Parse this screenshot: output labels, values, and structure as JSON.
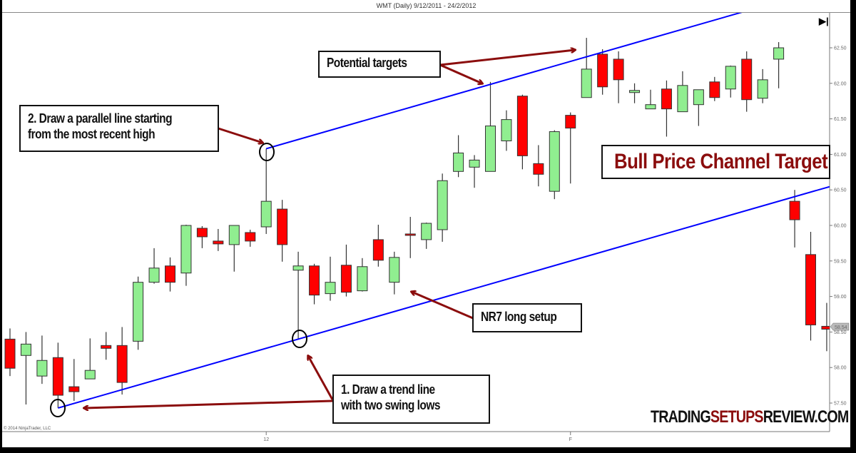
{
  "header": {
    "title": "WMT (Daily)  9/12/2011 - 24/2/2012"
  },
  "copyright": "© 2014 NinjaTrader, LLC",
  "end_button_icon": "skip-to-end-icon",
  "brand": {
    "part1": "TRADING",
    "part2": "SETUPS",
    "part3": "REVIEW.COM"
  },
  "annotations": {
    "potential_targets": "Potential targets",
    "parallel_line_1": "2. Draw a parallel line starting",
    "parallel_line_2": "from the most recent high",
    "bull_channel": "Bull Price Channel Target",
    "nr7": "NR7 long setup",
    "trendline_1": "1. Draw a trend line",
    "trendline_2": "with two swing lows"
  },
  "colors": {
    "up": "#90ee90",
    "down": "#ff0000",
    "trendline": "#0000ff",
    "annotation": "#8b0d0d"
  },
  "chart_data": {
    "type": "candlestick",
    "title": "WMT (Daily)  9/12/2011 - 24/2/2012",
    "ylim": [
      57.3,
      62.85
    ],
    "y_ticks": [
      "57.50",
      "58.00",
      "58.50",
      "59.00",
      "59.50",
      "60.00",
      "60.50",
      "61.00",
      "61.50",
      "62.00",
      "62.50"
    ],
    "x_ticks": [
      {
        "index": 16,
        "label": "12"
      },
      {
        "index": 35,
        "label": "F"
      }
    ],
    "last_price_label": "58.54",
    "grid": false,
    "candles_ohlc": [
      [
        58.4,
        58.55,
        57.88,
        57.99
      ],
      [
        58.17,
        58.5,
        57.48,
        58.33
      ],
      [
        57.88,
        58.45,
        57.77,
        58.1
      ],
      [
        58.14,
        58.35,
        57.43,
        57.61
      ],
      [
        57.73,
        58.12,
        57.53,
        57.66
      ],
      [
        57.84,
        58.41,
        57.84,
        57.96
      ],
      [
        58.31,
        58.5,
        58.11,
        58.27
      ],
      [
        58.31,
        58.57,
        57.62,
        57.79
      ],
      [
        58.37,
        59.28,
        58.25,
        59.2
      ],
      [
        59.2,
        59.68,
        59.18,
        59.4
      ],
      [
        59.43,
        59.55,
        59.07,
        59.2
      ],
      [
        59.33,
        60.01,
        59.15,
        60.0
      ],
      [
        59.96,
        59.99,
        59.68,
        59.84
      ],
      [
        59.78,
        59.95,
        59.64,
        59.74
      ],
      [
        59.73,
        60.0,
        59.35,
        60.0
      ],
      [
        59.9,
        59.94,
        59.7,
        59.78
      ],
      [
        59.98,
        61.08,
        59.88,
        60.34
      ],
      [
        60.23,
        60.36,
        59.49,
        59.73
      ],
      [
        59.37,
        59.63,
        58.4,
        59.43
      ],
      [
        59.43,
        59.46,
        58.89,
        59.02
      ],
      [
        59.04,
        59.56,
        58.94,
        59.2
      ],
      [
        59.44,
        59.73,
        59.0,
        59.06
      ],
      [
        59.08,
        59.54,
        59.07,
        59.42
      ],
      [
        59.8,
        60.01,
        59.42,
        59.51
      ],
      [
        59.2,
        59.63,
        59.03,
        59.55
      ],
      [
        59.88,
        60.12,
        59.54,
        59.86
      ],
      [
        59.8,
        60.04,
        59.67,
        60.03
      ],
      [
        59.94,
        60.73,
        59.77,
        60.63
      ],
      [
        60.76,
        61.27,
        60.68,
        61.02
      ],
      [
        60.82,
        60.99,
        60.53,
        60.92
      ],
      [
        60.76,
        62.02,
        60.76,
        61.4
      ],
      [
        61.19,
        61.62,
        61.05,
        61.49
      ],
      [
        61.82,
        61.84,
        60.79,
        60.98
      ],
      [
        60.87,
        61.13,
        60.55,
        60.72
      ],
      [
        60.48,
        61.34,
        60.37,
        61.32
      ],
      [
        61.55,
        61.59,
        60.59,
        61.37
      ],
      [
        61.8,
        62.64,
        61.8,
        62.2
      ],
      [
        62.41,
        62.48,
        61.84,
        61.95
      ],
      [
        62.34,
        62.45,
        61.72,
        62.05
      ],
      [
        61.87,
        62.0,
        61.72,
        61.9
      ],
      [
        61.64,
        61.91,
        61.64,
        61.7
      ],
      [
        61.92,
        62.04,
        61.25,
        61.64
      ],
      [
        61.6,
        62.17,
        61.6,
        61.97
      ],
      [
        61.7,
        61.91,
        61.4,
        61.91
      ],
      [
        62.02,
        62.09,
        61.75,
        61.8
      ],
      [
        61.92,
        62.25,
        61.8,
        62.24
      ],
      [
        62.34,
        62.45,
        61.6,
        61.77
      ],
      [
        61.79,
        62.2,
        61.72,
        62.05
      ],
      [
        62.34,
        62.58,
        61.93,
        62.5
      ],
      [
        60.34,
        60.5,
        59.69,
        60.08
      ],
      [
        59.59,
        59.91,
        58.38,
        58.6
      ],
      [
        58.58,
        58.91,
        58.23,
        58.54
      ]
    ],
    "trendlines": [
      {
        "role": "lower",
        "from": {
          "index": 3,
          "price": 57.43
        },
        "to": {
          "index": 18,
          "price": 58.4
        }
      },
      {
        "role": "upper-parallel",
        "from": {
          "index": 16,
          "price": 61.08
        }
      }
    ]
  }
}
